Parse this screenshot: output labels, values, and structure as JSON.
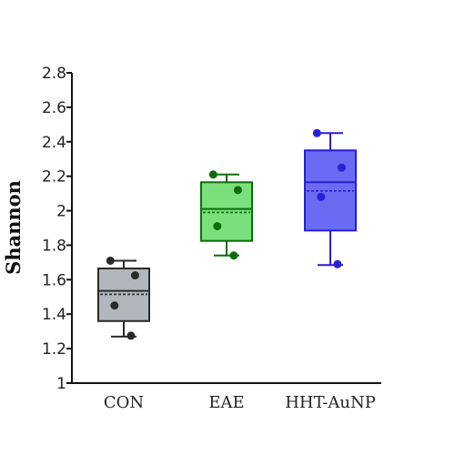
{
  "chart_data": {
    "type": "box",
    "ylabel": "Shannon",
    "xlabel": "",
    "ylim": [
      1,
      2.8
    ],
    "yticks": [
      "1",
      "1.2",
      "1.4",
      "1.6",
      "1.8",
      "2",
      "2.2",
      "2.4",
      "2.6",
      "2.8"
    ],
    "categories": [
      "CON",
      "EAE",
      "HHT-AuNP"
    ],
    "groups": [
      {
        "category": "CON",
        "fill": "#b3b6bc",
        "stroke": "#2a2a2a",
        "whisker_low": 1.27,
        "q1": 1.36,
        "median": 1.535,
        "mean": 1.515,
        "q3": 1.665,
        "whisker_high": 1.71,
        "points": [
          1.71,
          1.625,
          1.45,
          1.275
        ],
        "point_jitter": [
          -0.13,
          0.11,
          -0.09,
          0.07
        ]
      },
      {
        "category": "EAE",
        "fill": "#7bdf7b",
        "stroke": "#0b6e0b",
        "whisker_low": 1.74,
        "q1": 1.825,
        "median": 2.01,
        "mean": 1.99,
        "q3": 2.165,
        "whisker_high": 2.21,
        "points": [
          2.21,
          2.12,
          1.91,
          1.74
        ],
        "point_jitter": [
          -0.13,
          0.11,
          -0.09,
          0.07
        ]
      },
      {
        "category": "HHT-AuNP",
        "fill": "#6a6af2",
        "stroke": "#2a1fd6",
        "whisker_low": 1.685,
        "q1": 1.885,
        "median": 2.165,
        "mean": 2.115,
        "q3": 2.35,
        "whisker_high": 2.45,
        "points": [
          2.45,
          2.25,
          2.08,
          1.69
        ],
        "point_jitter": [
          -0.13,
          0.11,
          -0.09,
          0.07
        ]
      }
    ],
    "grid": false,
    "legend": "none"
  }
}
